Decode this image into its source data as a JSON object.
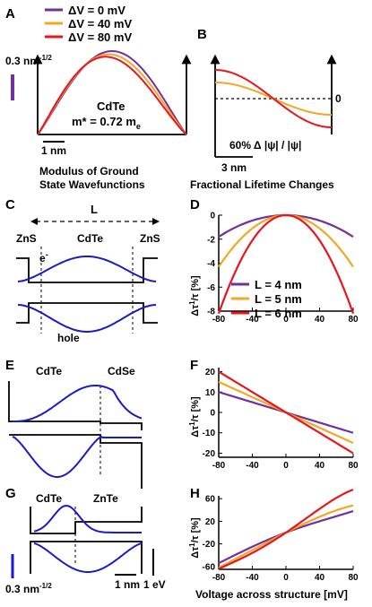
{
  "colors": {
    "purple": "#7030a0",
    "orange": "#f5a623",
    "red": "#e8161b",
    "blue": "#1a1acc",
    "black": "#000000"
  },
  "panel_a": {
    "letter": "A",
    "legend": [
      "ΔV = 0 mV",
      "ΔV = 40 mV",
      "ΔV = 80 mV"
    ],
    "scale_label": "0.3 nm",
    "scale_exp": "-1/2",
    "material": "CdTe",
    "mass_pre": "m* = 0.72 m",
    "mass_sub": "e",
    "length_scale": "1 nm",
    "caption_line1": "Modulus of Ground",
    "caption_line2": "State Wavefunctions"
  },
  "panel_b": {
    "letter": "B",
    "zero_label": "0",
    "scale_label": "60% Δ |ψ| / |ψ|",
    "length_scale": "3 nm",
    "caption": "Fractional Lifetime Changes"
  },
  "panel_c": {
    "letter": "C",
    "length_label": "L",
    "left_material": "ZnS",
    "center_material": "CdTe",
    "right_material": "ZnS",
    "electron_label": "e",
    "electron_sup": "-",
    "hole_label": "hole"
  },
  "panel_d": {
    "letter": "D",
    "ylabel_pre": "Δτ",
    "ylabel_post": "/τ [%]",
    "yticks": [
      "0",
      "-2",
      "-4",
      "-6",
      "-8"
    ],
    "xticks": [
      "-80",
      "-40",
      "0",
      "40",
      "80"
    ],
    "legend": [
      "L = 4 nm",
      "L = 5 nm",
      "L = 6 nm"
    ]
  },
  "panel_e": {
    "letter": "E",
    "left_material": "CdTe",
    "right_material": "CdSe"
  },
  "panel_f": {
    "letter": "F",
    "ylabel_pre": "Δτ",
    "ylabel_post": "/τ [%]",
    "yticks": [
      "20",
      "10",
      "0",
      "-10",
      "-20"
    ],
    "xticks": [
      "-80",
      "-40",
      "0",
      "40",
      "80"
    ]
  },
  "panel_g": {
    "letter": "G",
    "left_material": "CdTe",
    "right_material": "ZnTe",
    "scale_label": "0.3 nm",
    "scale_exp": "-1/2",
    "length_scale": "1 nm",
    "energy_scale": "1 eV"
  },
  "panel_h": {
    "letter": "H",
    "ylabel_pre": "Δτ",
    "ylabel_post": "/τ [%]",
    "yticks": [
      "60",
      "20",
      "-20",
      "-60"
    ],
    "xticks": [
      "-80",
      "-40",
      "0",
      "40",
      "80"
    ],
    "xlabel": "Voltage across structure [mV]"
  },
  "chart_data": [
    {
      "type": "line",
      "panel": "D",
      "x": [
        -80,
        -40,
        0,
        40,
        80
      ],
      "ylim": [
        -8,
        0
      ],
      "xlim": [
        -80,
        80
      ],
      "series": [
        {
          "name": "L = 4 nm",
          "color": "#7030a0",
          "values": [
            -1.8,
            -0.45,
            0,
            -0.45,
            -1.8
          ]
        },
        {
          "name": "L = 5 nm",
          "color": "#f5a623",
          "values": [
            -4.3,
            -1.1,
            0,
            -1.1,
            -4.3
          ]
        },
        {
          "name": "L = 6 nm",
          "color": "#e8161b",
          "values": [
            -8.2,
            -2.1,
            0,
            -2.1,
            -8.2
          ]
        }
      ]
    },
    {
      "type": "line",
      "panel": "F",
      "x": [
        -80,
        -40,
        0,
        40,
        80
      ],
      "ylim": [
        -22,
        22
      ],
      "xlim": [
        -80,
        80
      ],
      "series": [
        {
          "name": "L = 4 nm",
          "color": "#7030a0",
          "values": [
            10,
            5,
            0,
            -5,
            -10
          ]
        },
        {
          "name": "L = 5 nm",
          "color": "#f5a623",
          "values": [
            15,
            7.5,
            0,
            -7.5,
            -15
          ]
        },
        {
          "name": "L = 6 nm",
          "color": "#e8161b",
          "values": [
            20,
            10,
            0,
            -10,
            -20
          ]
        }
      ]
    },
    {
      "type": "line",
      "panel": "H",
      "x": [
        -80,
        -40,
        0,
        40,
        80
      ],
      "ylim": [
        -65,
        65
      ],
      "xlim": [
        -80,
        80
      ],
      "series": [
        {
          "name": "L = 4 nm",
          "color": "#7030a0",
          "values": [
            -54,
            -25,
            0,
            20,
            38
          ]
        },
        {
          "name": "L = 5 nm",
          "color": "#f5a623",
          "values": [
            -62,
            -31,
            0,
            28,
            48
          ]
        },
        {
          "name": "L = 6 nm",
          "color": "#e8161b",
          "values": [
            -64,
            -36,
            0,
            42,
            76
          ]
        }
      ]
    }
  ]
}
